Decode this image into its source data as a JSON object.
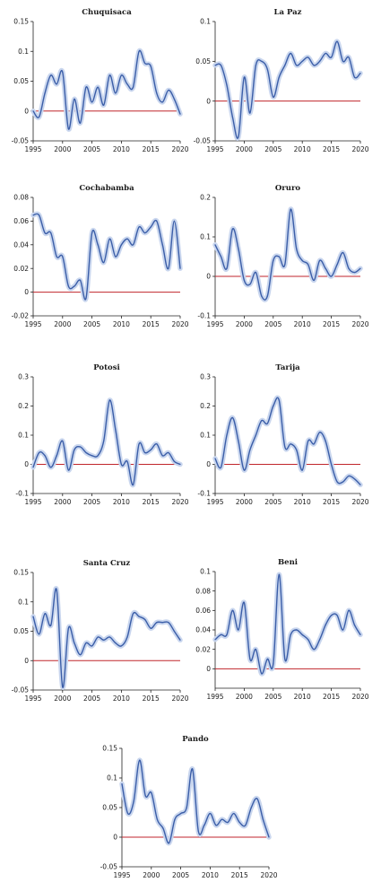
{
  "chart_data": [
    {
      "type": "line",
      "title": "Chuquisaca",
      "ylim": [
        -0.05,
        0.15
      ],
      "yticks": [
        "-0.05",
        "0",
        "0.05",
        "0.1",
        "0.15"
      ],
      "xticks": [
        "1995",
        "2000",
        "2005",
        "2010",
        "2015",
        "2020"
      ],
      "x": [
        1995,
        1996,
        1997,
        1998,
        1999,
        2000,
        2001,
        2002,
        2003,
        2004,
        2005,
        2006,
        2007,
        2008,
        2009,
        2010,
        2011,
        2012,
        2013,
        2014,
        2015,
        2016,
        2017,
        2018,
        2019,
        2020
      ],
      "series": [
        {
          "values": [
            0,
            -0.01,
            0.03,
            0.06,
            0.045,
            0.065,
            -0.03,
            0.02,
            -0.02,
            0.04,
            0.015,
            0.04,
            0.01,
            0.06,
            0.03,
            0.06,
            0.045,
            0.04,
            0.1,
            0.08,
            0.075,
            0.03,
            0.015,
            0.035,
            0.02,
            -0.005
          ]
        }
      ]
    },
    {
      "type": "line",
      "title": "La Paz",
      "ylim": [
        -0.05,
        0.1
      ],
      "yticks": [
        "-0.05",
        "0",
        "0.05",
        "0.1"
      ],
      "xticks": [
        "1995",
        "2000",
        "2005",
        "2010",
        "2015",
        "2020"
      ],
      "x": [
        1995,
        1996,
        1997,
        1998,
        1999,
        2000,
        2001,
        2002,
        2003,
        2004,
        2005,
        2006,
        2007,
        2008,
        2009,
        2010,
        2011,
        2012,
        2013,
        2014,
        2015,
        2016,
        2017,
        2018,
        2019,
        2020
      ],
      "series": [
        {
          "values": [
            0.045,
            0.045,
            0.02,
            -0.02,
            -0.045,
            0.03,
            -0.015,
            0.045,
            0.05,
            0.04,
            0.005,
            0.03,
            0.045,
            0.06,
            0.045,
            0.05,
            0.055,
            0.045,
            0.05,
            0.06,
            0.055,
            0.075,
            0.05,
            0.055,
            0.03,
            0.035
          ]
        }
      ]
    },
    {
      "type": "line",
      "title": "Cochabamba",
      "ylim": [
        -0.02,
        0.08
      ],
      "yticks": [
        "-0.02",
        "0",
        "0.02",
        "0.04",
        "0.06",
        "0.08"
      ],
      "xticks": [
        "1995",
        "2000",
        "2005",
        "2010",
        "2015",
        "2020"
      ],
      "x": [
        1995,
        1996,
        1997,
        1998,
        1999,
        2000,
        2001,
        2002,
        2003,
        2004,
        2005,
        2006,
        2007,
        2008,
        2009,
        2010,
        2011,
        2012,
        2013,
        2014,
        2015,
        2016,
        2017,
        2018,
        2019,
        2020
      ],
      "series": [
        {
          "values": [
            0.065,
            0.065,
            0.05,
            0.05,
            0.03,
            0.03,
            0.005,
            0.005,
            0.01,
            -0.005,
            0.05,
            0.04,
            0.025,
            0.045,
            0.03,
            0.04,
            0.045,
            0.04,
            0.055,
            0.05,
            0.055,
            0.06,
            0.04,
            0.02,
            0.06,
            0.02
          ]
        }
      ]
    },
    {
      "type": "line",
      "title": "Oruro",
      "ylim": [
        -0.1,
        0.2
      ],
      "yticks": [
        "-0.1",
        "0",
        "0.1",
        "0.2"
      ],
      "xticks": [
        "1995",
        "2000",
        "2005",
        "2010",
        "2015",
        "2020"
      ],
      "x": [
        1995,
        1996,
        1997,
        1998,
        1999,
        2000,
        2001,
        2002,
        2003,
        2004,
        2005,
        2006,
        2007,
        2008,
        2009,
        2010,
        2011,
        2012,
        2013,
        2014,
        2015,
        2016,
        2017,
        2018,
        2019,
        2020
      ],
      "series": [
        {
          "values": [
            0.08,
            0.05,
            0.02,
            0.12,
            0.07,
            -0.01,
            -0.02,
            0.01,
            -0.05,
            -0.05,
            0.04,
            0.05,
            0.03,
            0.17,
            0.07,
            0.04,
            0.03,
            -0.01,
            0.04,
            0.02,
            0.0,
            0.03,
            0.06,
            0.02,
            0.01,
            0.02
          ]
        }
      ]
    },
    {
      "type": "line",
      "title": "Potosi",
      "ylim": [
        -0.1,
        0.3
      ],
      "yticks": [
        "-0.1",
        "0",
        "0.1",
        "0.2",
        "0.3"
      ],
      "xticks": [
        "1995",
        "2000",
        "2005",
        "2010",
        "2015",
        "2020"
      ],
      "x": [
        1995,
        1996,
        1997,
        1998,
        1999,
        2000,
        2001,
        2002,
        2003,
        2004,
        2005,
        2006,
        2007,
        2008,
        2009,
        2010,
        2011,
        2012,
        2013,
        2014,
        2015,
        2016,
        2017,
        2018,
        2019,
        2020
      ],
      "series": [
        {
          "values": [
            -0.01,
            0.04,
            0.03,
            -0.01,
            0.03,
            0.08,
            -0.02,
            0.05,
            0.06,
            0.04,
            0.03,
            0.03,
            0.08,
            0.22,
            0.12,
            0.0,
            0.01,
            -0.07,
            0.07,
            0.04,
            0.05,
            0.07,
            0.03,
            0.04,
            0.01,
            0.0
          ]
        }
      ]
    },
    {
      "type": "line",
      "title": "Tarija",
      "ylim": [
        -0.1,
        0.3
      ],
      "yticks": [
        "-0.1",
        "0",
        "0.1",
        "0.2",
        "0.3"
      ],
      "xticks": [
        "1995",
        "2000",
        "2005",
        "2010",
        "2015",
        "2020"
      ],
      "x": [
        1995,
        1996,
        1997,
        1998,
        1999,
        2000,
        2001,
        2002,
        2003,
        2004,
        2005,
        2006,
        2007,
        2008,
        2009,
        2010,
        2011,
        2012,
        2013,
        2014,
        2015,
        2016,
        2017,
        2018,
        2019,
        2020
      ],
      "series": [
        {
          "values": [
            0.02,
            -0.01,
            0.1,
            0.16,
            0.08,
            -0.02,
            0.05,
            0.1,
            0.15,
            0.14,
            0.2,
            0.22,
            0.06,
            0.07,
            0.05,
            -0.02,
            0.08,
            0.07,
            0.11,
            0.08,
            0.0,
            -0.06,
            -0.06,
            -0.04,
            -0.05,
            -0.07
          ]
        }
      ]
    },
    {
      "type": "line",
      "title": "Santa Cruz",
      "ylim": [
        -0.05,
        0.15
      ],
      "yticks": [
        "-0.05",
        "0",
        "0.05",
        "0.1",
        "0.15"
      ],
      "xticks": [
        "1995",
        "2000",
        "2005",
        "2010",
        "2015",
        "2020"
      ],
      "x": [
        1995,
        1996,
        1997,
        1998,
        1999,
        2000,
        2001,
        2002,
        2003,
        2004,
        2005,
        2006,
        2007,
        2008,
        2009,
        2010,
        2011,
        2012,
        2013,
        2014,
        2015,
        2016,
        2017,
        2018,
        2019,
        2020
      ],
      "series": [
        {
          "values": [
            0.075,
            0.045,
            0.08,
            0.06,
            0.12,
            -0.045,
            0.055,
            0.03,
            0.01,
            0.03,
            0.025,
            0.04,
            0.035,
            0.04,
            0.03,
            0.025,
            0.04,
            0.08,
            0.075,
            0.07,
            0.055,
            0.065,
            0.065,
            0.065,
            0.05,
            0.035
          ]
        }
      ]
    },
    {
      "type": "line",
      "title": "Beni",
      "ylim": [
        -0.02,
        0.1
      ],
      "yticks": [
        "0",
        "0.02",
        "0.04",
        "0.06",
        "0.08",
        "0.1"
      ],
      "xticks": [
        "1995",
        "2000",
        "2005",
        "2010",
        "2015",
        "2020"
      ],
      "x": [
        1995,
        1996,
        1997,
        1998,
        1999,
        2000,
        2001,
        2002,
        2003,
        2004,
        2005,
        2006,
        2007,
        2008,
        2009,
        2010,
        2011,
        2012,
        2013,
        2014,
        2015,
        2016,
        2017,
        2018,
        2019,
        2020
      ],
      "series": [
        {
          "values": [
            0.03,
            0.035,
            0.035,
            0.06,
            0.04,
            0.068,
            0.01,
            0.02,
            -0.005,
            0.01,
            0.005,
            0.097,
            0.01,
            0.035,
            0.04,
            0.035,
            0.03,
            0.02,
            0.03,
            0.045,
            0.055,
            0.055,
            0.04,
            0.06,
            0.045,
            0.035
          ]
        }
      ]
    },
    {
      "type": "line",
      "title": "Pando",
      "ylim": [
        -0.05,
        0.15
      ],
      "yticks": [
        "-0.05",
        "0",
        "0.05",
        "0.1",
        "0.15"
      ],
      "xticks": [
        "1995",
        "2000",
        "2005",
        "2010",
        "2015",
        "2020"
      ],
      "x": [
        1995,
        1996,
        1997,
        1998,
        1999,
        2000,
        2001,
        2002,
        2003,
        2004,
        2005,
        2006,
        2007,
        2008,
        2009,
        2010,
        2011,
        2012,
        2013,
        2014,
        2015,
        2016,
        2017,
        2018,
        2019,
        2020
      ],
      "series": [
        {
          "values": [
            0.09,
            0.04,
            0.06,
            0.13,
            0.07,
            0.075,
            0.03,
            0.015,
            -0.01,
            0.03,
            0.04,
            0.05,
            0.115,
            0.01,
            0.02,
            0.04,
            0.02,
            0.03,
            0.025,
            0.04,
            0.025,
            0.02,
            0.05,
            0.065,
            0.03,
            0.0
          ]
        }
      ]
    }
  ]
}
